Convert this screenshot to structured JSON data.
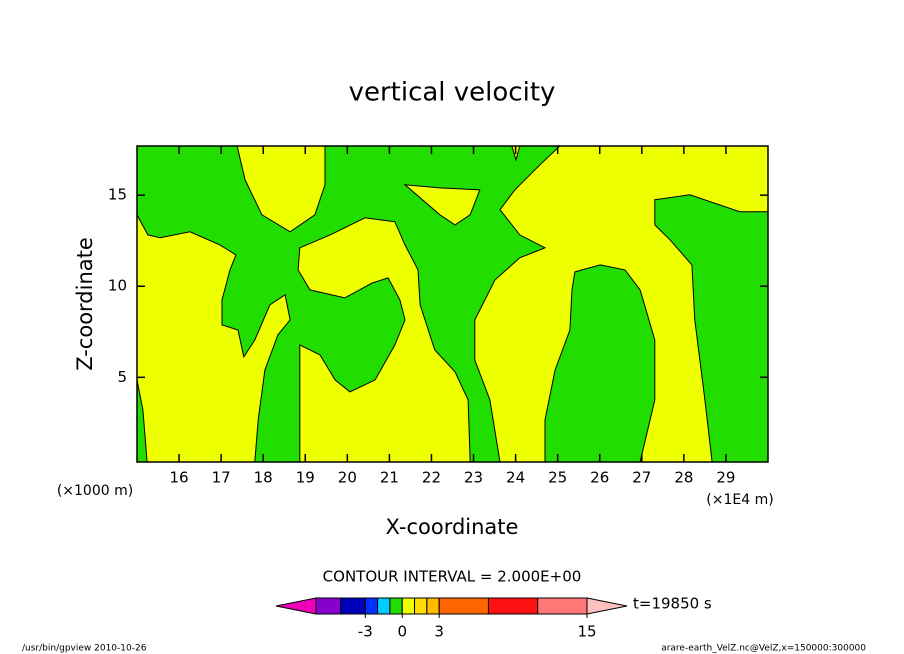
{
  "chart_data": {
    "type": "contour",
    "title": "vertical velocity",
    "xlabel": "X-coordinate",
    "ylabel": "Z-coordinate",
    "xunit": "(×1E4 m)",
    "yunit": "(×1000 m)",
    "xlim": [
      15,
      30
    ],
    "ylim": [
      0.35,
      17.7
    ],
    "xticks": [
      16,
      17,
      18,
      19,
      20,
      21,
      22,
      23,
      24,
      25,
      26,
      27,
      28,
      29
    ],
    "yticks": [
      5,
      10,
      15
    ],
    "background_color": "#eeff00",
    "regions": [
      {
        "color": "#22dd00",
        "x": [
          15,
          17.38,
          17.57,
          17.97,
          18.64,
          19.23,
          19.47,
          19.47,
          25.05,
          24.58,
          23.98,
          23.63,
          24.1,
          24.7,
          24.1,
          23.51,
          23.03,
          23.03,
          23.39,
          23.63,
          22.92,
          22.87,
          22.56,
          22.08,
          21.73,
          21.68,
          21.37,
          21.13,
          20.42,
          19.59,
          18.87,
          18.83,
          19.11,
          19.94,
          20.59,
          20.97,
          21.25,
          21.37,
          21.13,
          20.66,
          20.06,
          19.71,
          19.35,
          18.87,
          18.87,
          17.8,
          17.88,
          18.04,
          18.35,
          18.64,
          18.52,
          18.16,
          17.8,
          17.54,
          17.4,
          17.02,
          17.02,
          17.21,
          17.35,
          16.97,
          16.26,
          15.55,
          15.26,
          15
        ],
        "y": [
          17.7,
          17.7,
          15.84,
          13.92,
          12.99,
          13.92,
          15.57,
          17.7,
          17.7,
          16.67,
          15.29,
          14.2,
          12.82,
          12.11,
          11.56,
          10.35,
          8.15,
          5.95,
          3.76,
          0.35,
          0.35,
          3.76,
          5.3,
          6.5,
          8.98,
          10.9,
          12.27,
          13.54,
          13.76,
          12.82,
          12.11,
          10.9,
          9.8,
          9.36,
          10.18,
          10.46,
          9.25,
          8.15,
          6.78,
          4.86,
          4.2,
          4.86,
          6.23,
          6.78,
          0.35,
          0.35,
          2.66,
          5.4,
          7.33,
          8.15,
          9.53,
          8.98,
          7.05,
          6.12,
          7.6,
          7.88,
          9.25,
          10.9,
          11.72,
          12.27,
          12.99,
          12.66,
          12.82,
          13.92
        ]
      },
      {
        "color": "#eeff00",
        "x": [
          21.37,
          22.2,
          23.15,
          22.92,
          22.56,
          22.2
        ],
        "y": [
          15.57,
          15.4,
          15.29,
          13.92,
          13.37,
          13.92
        ]
      },
      {
        "color": "#eeff00",
        "x": [
          23.91,
          24.1,
          24.01
        ],
        "y": [
          17.7,
          17.7,
          16.94
        ]
      },
      {
        "color": "#22dd00",
        "x": [
          15,
          15.14,
          15.24,
          15
        ],
        "y": [
          4.86,
          3.21,
          0.35,
          0.35
        ]
      },
      {
        "color": "#22dd00",
        "x": [
          27.31,
          28.14,
          29.33,
          30,
          30,
          28.67,
          28.5,
          28.26,
          28.19,
          27.67,
          27.31
        ],
        "y": [
          14.75,
          15.02,
          14.09,
          14.09,
          0.35,
          0.35,
          3.76,
          8.15,
          11.17,
          12.55,
          13.37
        ]
      },
      {
        "color": "#22dd00",
        "x": [
          25.41,
          26.01,
          26.6,
          26.96,
          27.31,
          27.31,
          26.96,
          24.7,
          24.7,
          24.94,
          25.29,
          25.34
        ],
        "y": [
          10.79,
          11.17,
          10.9,
          9.8,
          7.05,
          3.76,
          0.35,
          0.35,
          2.66,
          5.4,
          7.6,
          9.8
        ]
      }
    ],
    "contour_interval": "CONTOUR INTERVAL = 2.000E+00",
    "colorbar": {
      "levels": [
        -7,
        -5,
        -3,
        -2,
        -1,
        0,
        1,
        2,
        3,
        7,
        11,
        15
      ],
      "colors": [
        "#8800cc",
        "#0000bb",
        "#0033ff",
        "#00ccff",
        "#22dd00",
        "#eeff00",
        "#ffdd00",
        "#ffbb00",
        "#ff6600",
        "#ff1111",
        "#ff7777"
      ],
      "under_color": "#ee00bb",
      "over_color": "#ffc0c0",
      "ticks": [
        -3,
        0,
        3,
        15
      ]
    },
    "time_label": "t=19850 s",
    "footer_left": "/usr/bin/gpview  2010-10-26",
    "footer_right": "arare-earth_VelZ.nc@VelZ,x=150000:300000"
  }
}
